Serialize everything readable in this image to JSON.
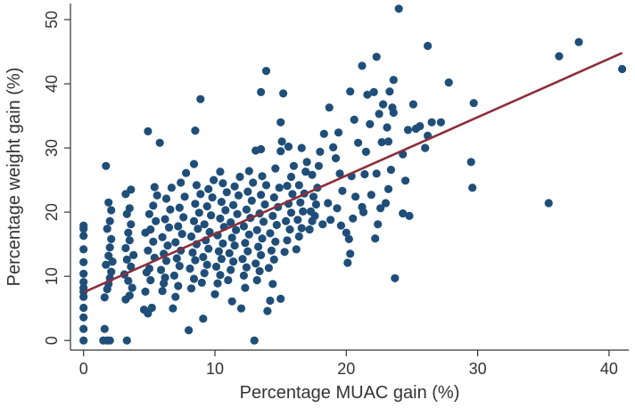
{
  "chart_data": {
    "type": "scatter",
    "title": "",
    "xlabel": "Percentage MUAC gain (%)",
    "ylabel": "Percentage weight gain (%)",
    "xlim": [
      -1,
      41.5
    ],
    "ylim": [
      -1.5,
      52.5
    ],
    "xticks": [
      "0",
      "10",
      "20",
      "30",
      "40"
    ],
    "yticks": [
      "0",
      "10",
      "20",
      "30",
      "40",
      "50"
    ],
    "grid": false,
    "legend": "none",
    "colors": {
      "points": "#1f4e79",
      "fit_line": "#8b2f3c",
      "axis": "#333333"
    },
    "fit_line": {
      "x": [
        0,
        41
      ],
      "y": [
        7.5,
        44.8
      ]
    },
    "points": [
      [
        0,
        0
      ],
      [
        0,
        1.8
      ],
      [
        0,
        3.6
      ],
      [
        0,
        5.1
      ],
      [
        0,
        6.8
      ],
      [
        0,
        7.6
      ],
      [
        0,
        8.2
      ],
      [
        0,
        9.1
      ],
      [
        0,
        10.4
      ],
      [
        0,
        12.2
      ],
      [
        0,
        14.2
      ],
      [
        0,
        16.3
      ],
      [
        0,
        17.4
      ],
      [
        0,
        17.9
      ],
      [
        1.5,
        0
      ],
      [
        1.8,
        0
      ],
      [
        2.0,
        0
      ],
      [
        1.6,
        1.8
      ],
      [
        1.7,
        27.2
      ],
      [
        1.6,
        6.7
      ],
      [
        1.8,
        8.0
      ],
      [
        1.9,
        8.8
      ],
      [
        2.0,
        9.7
      ],
      [
        2.1,
        10.7
      ],
      [
        1.7,
        11.8
      ],
      [
        1.9,
        13.2
      ],
      [
        2.0,
        14.5
      ],
      [
        2.1,
        15.8
      ],
      [
        1.8,
        17.4
      ],
      [
        2.0,
        18.6
      ],
      [
        2.1,
        20.3
      ],
      [
        1.9,
        21.5
      ],
      [
        2.2,
        12.3
      ],
      [
        3.3,
        0
      ],
      [
        3.2,
        6.4
      ],
      [
        3.5,
        7.0
      ],
      [
        3.7,
        8.2
      ],
      [
        3.4,
        9.3
      ],
      [
        3.1,
        10.3
      ],
      [
        3.6,
        11.5
      ],
      [
        3.3,
        12.6
      ],
      [
        3.8,
        13.3
      ],
      [
        3.2,
        14.4
      ],
      [
        3.5,
        15.6
      ],
      [
        3.4,
        16.8
      ],
      [
        3.6,
        18.1
      ],
      [
        3.3,
        19.7
      ],
      [
        3.5,
        20.6
      ],
      [
        3.2,
        22.8
      ],
      [
        3.6,
        23.5
      ],
      [
        4.6,
        4.8
      ],
      [
        4.9,
        4.2
      ],
      [
        5.2,
        5.1
      ],
      [
        4.7,
        7.6
      ],
      [
        5.1,
        9.4
      ],
      [
        4.8,
        10.6
      ],
      [
        5.0,
        11.2
      ],
      [
        5.4,
        12.9
      ],
      [
        4.9,
        14.0
      ],
      [
        5.3,
        15.4
      ],
      [
        4.7,
        16.8
      ],
      [
        5.1,
        17.3
      ],
      [
        5.5,
        18.6
      ],
      [
        5.0,
        19.7
      ],
      [
        5.3,
        21.0
      ],
      [
        5.6,
        22.6
      ],
      [
        5.4,
        23.9
      ],
      [
        4.9,
        32.6
      ],
      [
        5.8,
        30.8
      ],
      [
        6.0,
        7.7
      ],
      [
        6.2,
        9.8
      ],
      [
        5.9,
        11.0
      ],
      [
        6.3,
        12.4
      ],
      [
        6.1,
        13.5
      ],
      [
        6.4,
        14.8
      ],
      [
        6.0,
        16.1
      ],
      [
        6.5,
        17.6
      ],
      [
        6.2,
        18.9
      ],
      [
        6.6,
        20.4
      ],
      [
        6.3,
        22.1
      ],
      [
        6.7,
        23.8
      ],
      [
        6.1,
        8.9
      ],
      [
        6.8,
        5.0
      ],
      [
        7.0,
        6.8
      ],
      [
        7.2,
        8.5
      ],
      [
        6.9,
        10.1
      ],
      [
        7.3,
        11.6
      ],
      [
        7.1,
        12.8
      ],
      [
        7.4,
        14.0
      ],
      [
        7.0,
        15.3
      ],
      [
        7.5,
        16.6
      ],
      [
        7.2,
        17.8
      ],
      [
        7.6,
        19.2
      ],
      [
        7.3,
        20.7
      ],
      [
        7.7,
        22.4
      ],
      [
        7.4,
        24.6
      ],
      [
        7.8,
        26.1
      ],
      [
        8.0,
        1.6
      ],
      [
        8.2,
        8.1
      ],
      [
        8.4,
        9.6
      ],
      [
        8.1,
        11.2
      ],
      [
        8.5,
        12.5
      ],
      [
        8.3,
        13.7
      ],
      [
        8.6,
        15.0
      ],
      [
        8.2,
        16.2
      ],
      [
        8.7,
        17.4
      ],
      [
        8.4,
        18.6
      ],
      [
        8.8,
        19.9
      ],
      [
        8.5,
        21.3
      ],
      [
        8.9,
        22.8
      ],
      [
        8.6,
        24.2
      ],
      [
        8.4,
        27.5
      ],
      [
        8.5,
        32.7
      ],
      [
        8.9,
        37.6
      ],
      [
        9.1,
        3.4
      ],
      [
        9.0,
        9.0
      ],
      [
        9.2,
        10.5
      ],
      [
        9.4,
        11.8
      ],
      [
        9.1,
        13.0
      ],
      [
        9.5,
        14.3
      ],
      [
        9.3,
        15.6
      ],
      [
        9.6,
        16.9
      ],
      [
        9.2,
        18.1
      ],
      [
        9.7,
        19.5
      ],
      [
        9.4,
        20.9
      ],
      [
        9.8,
        22.3
      ],
      [
        9.5,
        23.6
      ],
      [
        9.9,
        25.0
      ],
      [
        10.0,
        7.2
      ],
      [
        10.2,
        8.9
      ],
      [
        10.4,
        10.2
      ],
      [
        10.1,
        11.5
      ],
      [
        10.5,
        12.7
      ],
      [
        10.3,
        13.9
      ],
      [
        10.6,
        15.1
      ],
      [
        10.2,
        16.4
      ],
      [
        10.7,
        17.7
      ],
      [
        10.4,
        19.0
      ],
      [
        10.8,
        20.3
      ],
      [
        10.5,
        21.6
      ],
      [
        10.9,
        23.1
      ],
      [
        10.6,
        24.5
      ],
      [
        10.4,
        26.3
      ],
      [
        11.0,
        9.4
      ],
      [
        11.2,
        11.0
      ],
      [
        11.4,
        12.3
      ],
      [
        11.1,
        13.6
      ],
      [
        11.5,
        14.8
      ],
      [
        11.3,
        16.0
      ],
      [
        11.6,
        17.2
      ],
      [
        11.2,
        18.4
      ],
      [
        11.7,
        19.7
      ],
      [
        11.4,
        21.1
      ],
      [
        11.8,
        22.6
      ],
      [
        11.5,
        24.0
      ],
      [
        11.9,
        25.5
      ],
      [
        11.3,
        6.1
      ],
      [
        12.0,
        5.0
      ],
      [
        12.2,
        10.1
      ],
      [
        12.4,
        11.4
      ],
      [
        12.1,
        12.7
      ],
      [
        12.5,
        13.9
      ],
      [
        12.3,
        15.2
      ],
      [
        12.6,
        16.5
      ],
      [
        12.2,
        17.8
      ],
      [
        12.7,
        19.1
      ],
      [
        12.4,
        20.4
      ],
      [
        12.8,
        21.8
      ],
      [
        12.5,
        23.2
      ],
      [
        12.9,
        24.6
      ],
      [
        12.6,
        26.4
      ],
      [
        12.3,
        8.2
      ],
      [
        13.0,
        0
      ],
      [
        13.2,
        9.4
      ],
      [
        13.4,
        10.8
      ],
      [
        13.1,
        12.0
      ],
      [
        13.5,
        13.3
      ],
      [
        13.3,
        14.6
      ],
      [
        13.6,
        15.9
      ],
      [
        13.2,
        17.2
      ],
      [
        13.7,
        18.5
      ],
      [
        13.4,
        19.8
      ],
      [
        13.8,
        21.2
      ],
      [
        13.5,
        22.7
      ],
      [
        13.9,
        24.2
      ],
      [
        13.6,
        25.6
      ],
      [
        13.1,
        29.6
      ],
      [
        13.5,
        29.8
      ],
      [
        13.5,
        38.7
      ],
      [
        13.9,
        42.0
      ],
      [
        14.0,
        4.6
      ],
      [
        14.2,
        6.2
      ],
      [
        14.4,
        8.8
      ],
      [
        14.1,
        11.3
      ],
      [
        14.5,
        12.6
      ],
      [
        14.3,
        14.0
      ],
      [
        14.6,
        15.4
      ],
      [
        14.2,
        16.7
      ],
      [
        14.7,
        18.0
      ],
      [
        14.4,
        19.4
      ],
      [
        14.8,
        20.8
      ],
      [
        14.5,
        22.3
      ],
      [
        14.9,
        23.8
      ],
      [
        14.6,
        26.8
      ],
      [
        15.0,
        29.5
      ],
      [
        15.1,
        31.0
      ],
      [
        15.0,
        34.0
      ],
      [
        15.2,
        38.5
      ],
      [
        15.0,
        6.5
      ],
      [
        15.3,
        13.8
      ],
      [
        15.5,
        15.6
      ],
      [
        15.7,
        17.3
      ],
      [
        15.4,
        18.6
      ],
      [
        15.8,
        19.9
      ],
      [
        15.6,
        21.3
      ],
      [
        15.9,
        22.8
      ],
      [
        15.5,
        24.1
      ],
      [
        15.8,
        25.5
      ],
      [
        16.0,
        27.2
      ],
      [
        15.6,
        30.2
      ],
      [
        16.2,
        14.2
      ],
      [
        16.4,
        16.2
      ],
      [
        16.6,
        17.5
      ],
      [
        16.3,
        18.8
      ],
      [
        16.7,
        20.1
      ],
      [
        16.5,
        21.5
      ],
      [
        16.8,
        22.9
      ],
      [
        16.4,
        24.2
      ],
      [
        16.9,
        26.3
      ],
      [
        17.0,
        27.8
      ],
      [
        16.6,
        30.0
      ],
      [
        17.2,
        17.3
      ],
      [
        17.4,
        18.6
      ],
      [
        17.6,
        19.4
      ],
      [
        17.3,
        20.1
      ],
      [
        17.7,
        21.2
      ],
      [
        17.5,
        22.4
      ],
      [
        17.8,
        23.8
      ],
      [
        17.4,
        25.8
      ],
      [
        17.9,
        27.2
      ],
      [
        18.0,
        29.4
      ],
      [
        18.2,
        18.1
      ],
      [
        18.3,
        32.2
      ],
      [
        18.6,
        21.4
      ],
      [
        18.7,
        36.3
      ],
      [
        18.8,
        18.8
      ],
      [
        19.0,
        30.1
      ],
      [
        19.2,
        28.4
      ],
      [
        19.4,
        32.4
      ],
      [
        19.6,
        17.9
      ],
      [
        19.3,
        20.6
      ],
      [
        19.7,
        23.3
      ],
      [
        19.5,
        26.0
      ],
      [
        20.1,
        12.1
      ],
      [
        20.3,
        13.5
      ],
      [
        20.2,
        15.8
      ],
      [
        20.0,
        16.8
      ],
      [
        20.5,
        19.0
      ],
      [
        20.7,
        22.4
      ],
      [
        20.4,
        25.6
      ],
      [
        20.9,
        30.8
      ],
      [
        20.6,
        34.4
      ],
      [
        20.3,
        38.8
      ],
      [
        21.3,
        20.0
      ],
      [
        21.5,
        29.4
      ],
      [
        21.8,
        33.7
      ],
      [
        21.9,
        22.7
      ],
      [
        21.6,
        38.3
      ],
      [
        21.4,
        25.9
      ],
      [
        21.2,
        20.8
      ],
      [
        21.2,
        42.8
      ],
      [
        22.2,
        15.9
      ],
      [
        22.4,
        18.1
      ],
      [
        22.6,
        20.6
      ],
      [
        22.3,
        26.0
      ],
      [
        22.7,
        30.9
      ],
      [
        22.5,
        35.3
      ],
      [
        22.8,
        36.8
      ],
      [
        22.1,
        38.7
      ],
      [
        22.3,
        44.2
      ],
      [
        23.0,
        21.4
      ],
      [
        23.2,
        23.6
      ],
      [
        23.4,
        26.6
      ],
      [
        23.1,
        33.2
      ],
      [
        23.5,
        36.3
      ],
      [
        23.3,
        38.8
      ],
      [
        23.6,
        40.6
      ],
      [
        23.2,
        31.0
      ],
      [
        23.7,
        9.7
      ],
      [
        23.6,
        35.5
      ],
      [
        24.0,
        51.7
      ],
      [
        24.3,
        29.0
      ],
      [
        24.5,
        24.9
      ],
      [
        24.7,
        32.8
      ],
      [
        24.3,
        19.8
      ],
      [
        24.8,
        19.4
      ],
      [
        25.1,
        36.8
      ],
      [
        25.3,
        33.0
      ],
      [
        25.6,
        33.4
      ],
      [
        26.0,
        30.0
      ],
      [
        26.2,
        45.9
      ],
      [
        26.5,
        34.0
      ],
      [
        26.2,
        31.9
      ],
      [
        27.2,
        34.0
      ],
      [
        27.8,
        40.2
      ],
      [
        29.5,
        27.8
      ],
      [
        29.6,
        23.8
      ],
      [
        29.7,
        37.0
      ],
      [
        35.4,
        21.4
      ],
      [
        36.2,
        44.3
      ],
      [
        37.7,
        46.5
      ],
      [
        41.0,
        42.3
      ]
    ]
  }
}
